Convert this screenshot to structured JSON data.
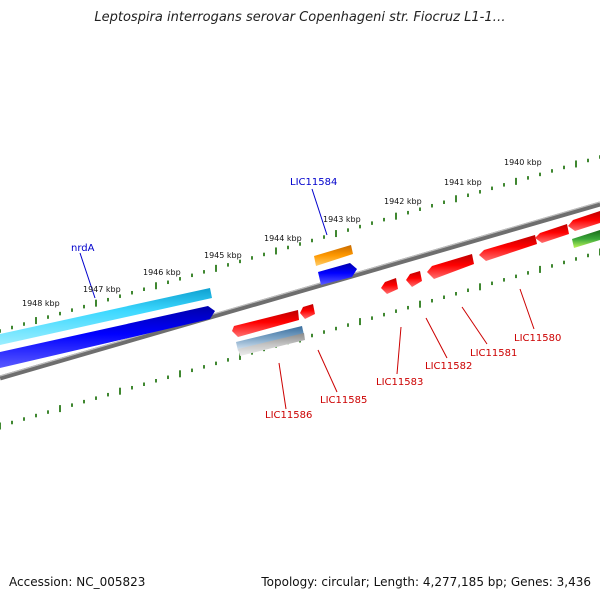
{
  "title": "Leptospira interrogans serovar Copenhageni str. Fiocruz L1-1…",
  "footer": {
    "accession": "Accession: NC_005823",
    "summary": "Topology: circular; Length: 4,277,185 bp; Genes: 3,436"
  },
  "ruler_labels": [
    "1948 kbp",
    "1947 kbp",
    "1946 kbp",
    "1945 kbp",
    "1944 kbp",
    "1943 kbp",
    "1942 kbp",
    "1941 kbp",
    "1940 kbp"
  ],
  "gene_labels": {
    "forward": [
      "nrdA",
      "LIC11584"
    ],
    "reverse": [
      "LIC11586",
      "LIC11585",
      "LIC11583",
      "LIC11582",
      "LIC11581",
      "LIC11580"
    ]
  },
  "colors": {
    "forward_label": "#0000cc",
    "reverse_label": "#cc0000",
    "forward_gene": "#0000ee",
    "reverse_gene": "#ee0000",
    "backbone": "#808080",
    "tick": "#2a7a1a",
    "cyan_feature": "#1ec8f0",
    "orange_feature": "#ff9900"
  }
}
